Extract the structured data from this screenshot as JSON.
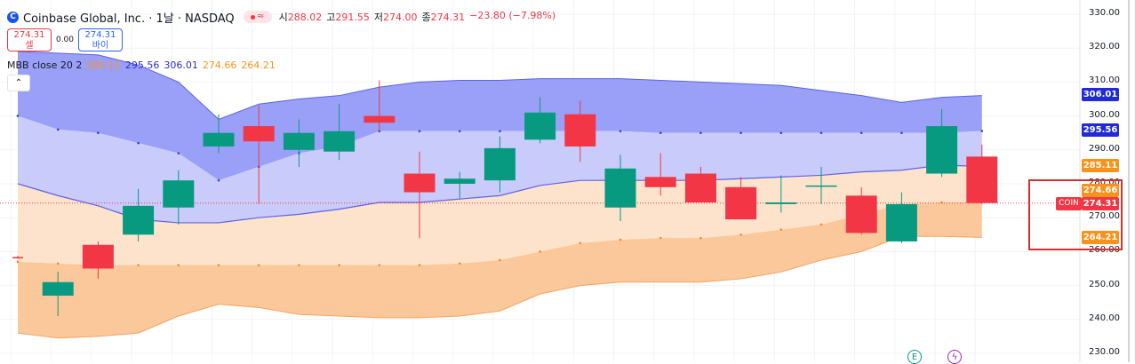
{
  "header": {
    "logo_letter": "C",
    "symbol_line": "Coinbase Global, Inc. · 1날 · NASDAQ",
    "open_label": "시",
    "open": "288.02",
    "high_label": "고",
    "high": "291.55",
    "low_label": "저",
    "low": "274.00",
    "close_label": "종",
    "close": "274.31",
    "change": "−23.80 (−7.98%)"
  },
  "trade": {
    "sell_price": "274.31",
    "sell_label": "셀",
    "spread": "0.00",
    "buy_price": "274.31",
    "buy_label": "바이"
  },
  "indicator": {
    "name": "MBB close 20 2",
    "v1": "285.11",
    "v2": "295.56",
    "v3": "306.01",
    "v4": "274.66",
    "v5": "264.21"
  },
  "collapse_icon": "chevron-up",
  "price_labels": {
    "upper": "306.01",
    "upper_mid": "295.56",
    "basis": "285.11",
    "lower_mid": "274.66",
    "last": "274.31",
    "lower": "264.21",
    "symbol_tag": "COIN"
  },
  "events": {
    "earnings_letter": "E",
    "dividend_symbol": "ϟ"
  },
  "colors": {
    "up": "#089981",
    "down": "#f23645",
    "upper_band": "#5b62e8",
    "lower_band": "#f7a35c",
    "basis_line": "#f0913a",
    "highlight_box": "#d32f2f"
  },
  "chart_data": {
    "type": "candlestick",
    "ylim": [
      229,
      333
    ],
    "y_ticks": [
      230,
      240,
      250,
      260,
      270,
      280,
      290,
      300,
      310,
      320,
      330
    ],
    "candles": [
      {
        "o": 258.4,
        "h": 258.8,
        "l": 258.0,
        "c": 258.2
      },
      {
        "o": 247.0,
        "h": 254.0,
        "l": 241.0,
        "c": 251.0
      },
      {
        "o": 262.0,
        "h": 263.0,
        "l": 252.0,
        "c": 255.0
      },
      {
        "o": 265.0,
        "h": 278.5,
        "l": 263.0,
        "c": 273.5
      },
      {
        "o": 273.0,
        "h": 284.0,
        "l": 268.0,
        "c": 281.0
      },
      {
        "o": 291.0,
        "h": 300.5,
        "l": 289.0,
        "c": 295.0
      },
      {
        "o": 297.0,
        "h": 303.0,
        "l": 274.0,
        "c": 292.5
      },
      {
        "o": 290.0,
        "h": 299.0,
        "l": 285.0,
        "c": 295.0
      },
      {
        "o": 289.5,
        "h": 303.5,
        "l": 287.0,
        "c": 295.5
      },
      {
        "o": 300.0,
        "h": 310.5,
        "l": 295.5,
        "c": 298.0
      },
      {
        "o": 283.0,
        "h": 289.5,
        "l": 264.0,
        "c": 277.5
      },
      {
        "o": 280.0,
        "h": 283.5,
        "l": 275.5,
        "c": 281.5
      },
      {
        "o": 281.0,
        "h": 294.0,
        "l": 277.5,
        "c": 290.5
      },
      {
        "o": 293.0,
        "h": 305.5,
        "l": 292.0,
        "c": 301.0
      },
      {
        "o": 300.5,
        "h": 304.5,
        "l": 286.5,
        "c": 291.0
      },
      {
        "o": 273.0,
        "h": 288.5,
        "l": 269.0,
        "c": 284.5
      },
      {
        "o": 282.0,
        "h": 289.0,
        "l": 276.5,
        "c": 279.0
      },
      {
        "o": 283.0,
        "h": 285.0,
        "l": 275.0,
        "c": 274.5
      },
      {
        "o": 279.0,
        "h": 282.0,
        "l": 270.0,
        "c": 269.5
      },
      {
        "o": 274.0,
        "h": 282.5,
        "l": 271.5,
        "c": 274.5
      },
      {
        "o": 279.5,
        "h": 285.0,
        "l": 274.0,
        "c": 279.5
      },
      {
        "o": 276.5,
        "h": 279.0,
        "l": 265.0,
        "c": 265.5
      },
      {
        "o": 263.0,
        "h": 277.5,
        "l": 262.5,
        "c": 274.0
      },
      {
        "o": 283.0,
        "h": 302.0,
        "l": 282.0,
        "c": 297.0
      },
      {
        "o": 288.02,
        "h": 291.55,
        "l": 274.0,
        "c": 274.31
      }
    ],
    "bands": {
      "upper": [
        319,
        318.5,
        318,
        315,
        310,
        299,
        303.5,
        305,
        306,
        308.5,
        310,
        310.5,
        310.5,
        311,
        311,
        311,
        310.5,
        310,
        309.5,
        309,
        307.5,
        306,
        304,
        305.5,
        306.01
      ],
      "upper_mid": [
        300,
        296,
        295,
        292,
        289,
        281,
        285,
        289,
        291,
        295.5,
        295.5,
        295.5,
        295.5,
        295.5,
        295.5,
        295.5,
        295,
        295,
        295,
        295,
        295,
        295,
        295,
        295,
        295.56
      ],
      "basis": [
        280,
        276.5,
        273.5,
        269.5,
        268.5,
        268.5,
        270,
        271,
        272.5,
        274.5,
        274.5,
        275.5,
        276.5,
        279.5,
        281,
        281,
        281,
        281,
        281.5,
        282,
        282.5,
        283.5,
        284,
        285.5,
        285.11
      ],
      "lower_mid": [
        257,
        256.5,
        256,
        256,
        256,
        256,
        256,
        256,
        256,
        256,
        256,
        256.5,
        257.5,
        260,
        262.5,
        263.5,
        264,
        264,
        265,
        266.5,
        268,
        271,
        274,
        274.5,
        274.66
      ],
      "lower": [
        236,
        234.5,
        235,
        236,
        241,
        244.5,
        243.5,
        241.5,
        241,
        240.5,
        240.5,
        241,
        242.5,
        247.5,
        250,
        251,
        251,
        251,
        252,
        254,
        257.5,
        260,
        264.5,
        264.5,
        264.21
      ]
    },
    "last_price": 274.31,
    "legend": "MBB close 20 2"
  }
}
